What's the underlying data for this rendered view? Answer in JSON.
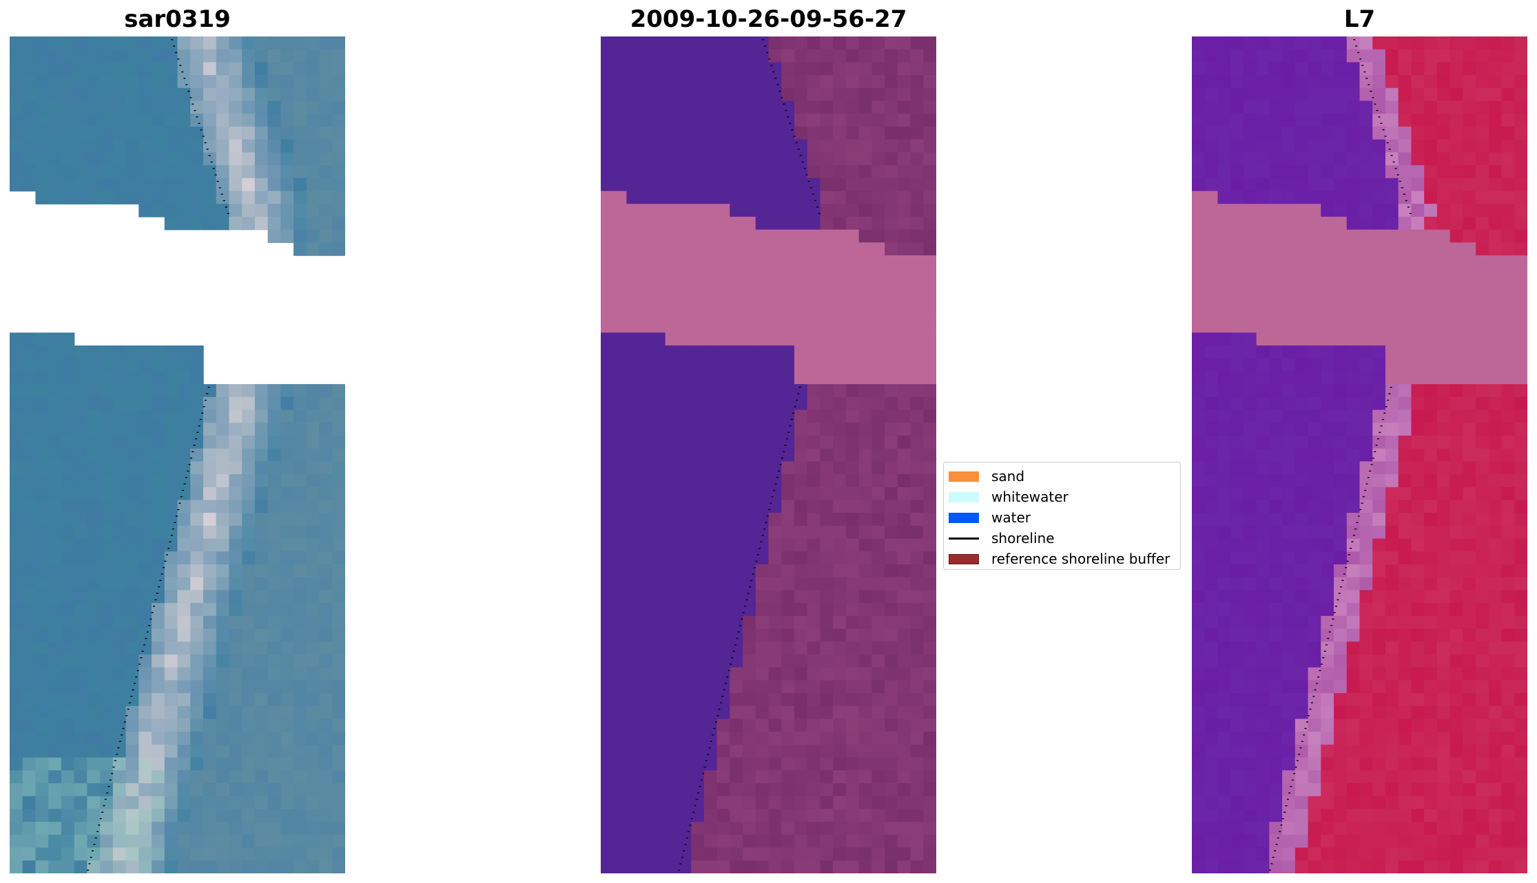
{
  "panels": [
    {
      "title": "sar0319",
      "kind": "rgb"
    },
    {
      "title": "2009-10-26-09-56-27",
      "kind": "classified"
    },
    {
      "title": "L7",
      "kind": "index"
    }
  ],
  "legend": {
    "items": [
      {
        "label": "sand",
        "color": "#fa8f3b",
        "type": "patch"
      },
      {
        "label": "whitewater",
        "color": "#ccfcff",
        "type": "patch"
      },
      {
        "label": "water",
        "color": "#0059f5",
        "type": "patch"
      },
      {
        "label": "shoreline",
        "color": "#000000",
        "type": "line"
      },
      {
        "label": "reference shoreline buffer",
        "color": "#9b2c2c",
        "type": "patch",
        "edge": "#6b1b1b"
      }
    ]
  },
  "colors": {
    "masked_overlay": "#bd6698",
    "water_class": "#542595",
    "land_class": "#7a2f6d",
    "index_water": "#6a1ea6",
    "index_land": "#c81a50",
    "rgb_water": "#3f7ba3",
    "rgb_sand": "#d8d0d6"
  }
}
